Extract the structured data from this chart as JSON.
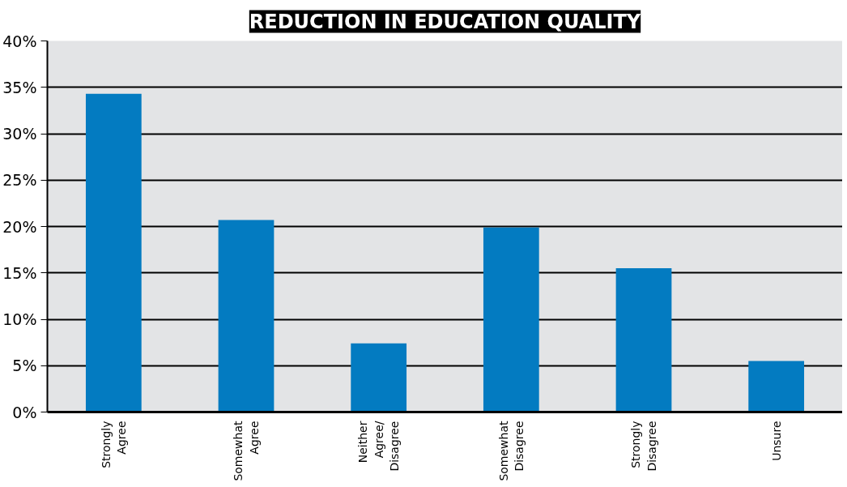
{
  "chart_data": {
    "type": "bar",
    "title": "REDUCTION IN EDUCATION QUALITY",
    "categories": [
      "Strongly\nAgree",
      "Somewhat\nAgree",
      "Neither\nAgree/\nDisagree",
      "Somewhat\nDisagree",
      "Strongly\nDisagree",
      "Unsure"
    ],
    "values": [
      34.3,
      20.7,
      7.4,
      19.9,
      15.5,
      5.5
    ],
    "color": "#037bc1",
    "ylim": [
      0,
      40
    ],
    "yticks": [
      {
        "value": 0,
        "label": "0%"
      },
      {
        "value": 5,
        "label": "5%"
      },
      {
        "value": 10,
        "label": "10%"
      },
      {
        "value": 15,
        "label": "15%"
      },
      {
        "value": 20,
        "label": "20%"
      },
      {
        "value": 25,
        "label": "25%"
      },
      {
        "value": 30,
        "label": "30%"
      },
      {
        "value": 35,
        "label": "35%"
      },
      {
        "value": 40,
        "label": "40%"
      }
    ],
    "grid": "y"
  }
}
